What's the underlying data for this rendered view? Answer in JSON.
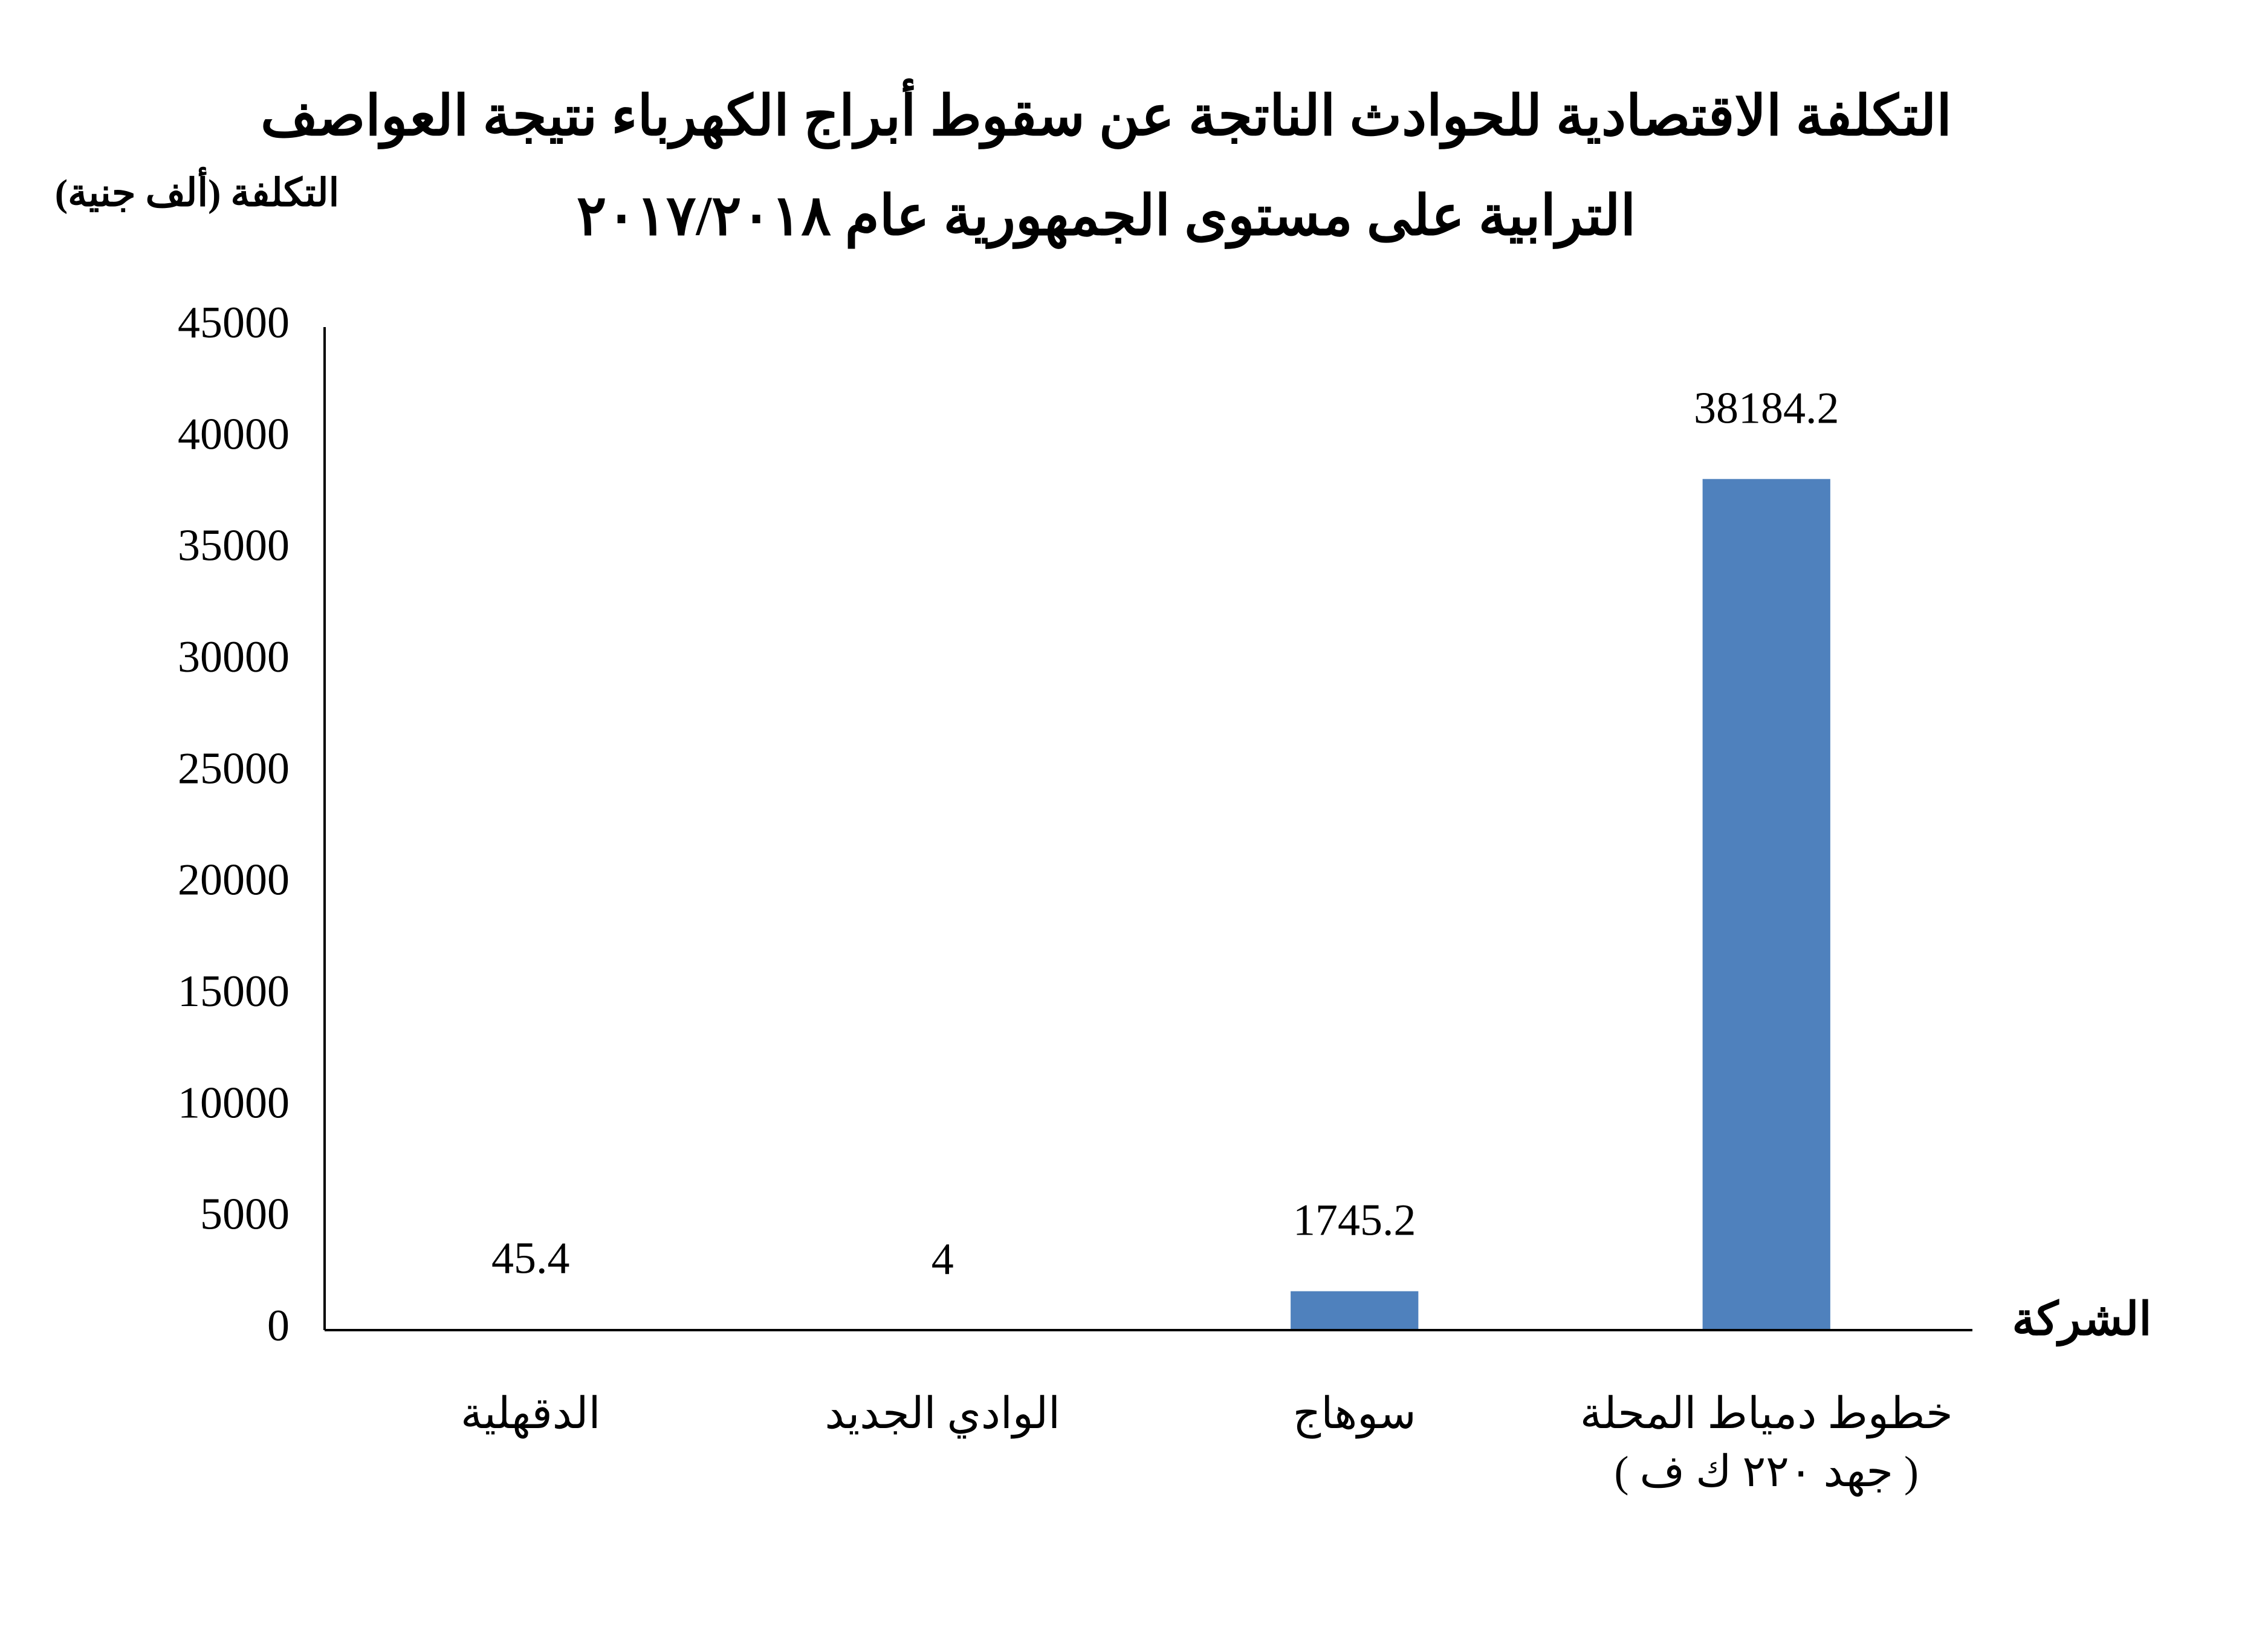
{
  "chart_data": {
    "type": "bar",
    "title": "التكلفة الاقتصادية للحوادث الناتجة عن سقوط أبراج الكهرباء نتيجة العواصف\nالترابية على مستوى الجمهورية عام ٢٠١٧/٢٠١٨",
    "y_label": "التكلفة (ألف جنية)",
    "x_label": "الشركة",
    "categories": [
      "الدقهلية",
      "الوادي الجديد",
      "سوهاج",
      "خطوط دمياط المحلة\n( جهد ٢٢٠ ك ف )"
    ],
    "values": [
      45.4,
      4,
      1745.2,
      38184.2
    ],
    "color": "#4f81bd",
    "ylim": [
      0,
      45000
    ],
    "yticks": [
      0,
      5000,
      10000,
      15000,
      20000,
      25000,
      30000,
      35000,
      40000,
      45000
    ],
    "grid": false
  }
}
